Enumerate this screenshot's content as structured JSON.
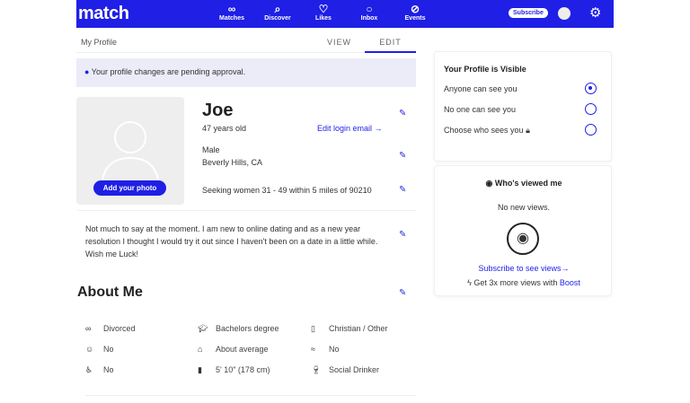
{
  "nav": {
    "logo": "match",
    "items": [
      {
        "label": "Matches",
        "icon": "rings-icon"
      },
      {
        "label": "Discover",
        "icon": "search-icon"
      },
      {
        "label": "Likes",
        "icon": "heart-icon"
      },
      {
        "label": "Inbox",
        "icon": "chat-icon"
      },
      {
        "label": "Events",
        "icon": "ticket-icon"
      }
    ],
    "subscribe": "Subscribe"
  },
  "header": {
    "title": "My Profile",
    "tabs": [
      "VIEW",
      "EDIT"
    ],
    "active_tab": "EDIT"
  },
  "banner": "Your profile changes are pending approval.",
  "profile": {
    "add_photo": "Add your photo",
    "name": "Joe",
    "age": "47 years old",
    "edit_login": "Edit login email →",
    "gender": "Male",
    "location": "Beverly Hills, CA",
    "seeking": "Seeking women 31 - 49 within 5 miles of 90210",
    "bio": "Not much to say at the moment. I am new to online dating and as a new year resolution I thought I would try it out since I haven't been on a date in a little while. Wish me Luck!"
  },
  "about": {
    "title": "About Me",
    "items": [
      [
        "Divorced",
        "Bachelors degree",
        "Christian / Other"
      ],
      [
        "No",
        "About average",
        "No"
      ],
      [
        "No",
        "5' 10\" (178 cm)",
        "Social Drinker"
      ]
    ]
  },
  "visibility": {
    "title": "Your Profile is Visible",
    "options": [
      "Anyone can see you",
      "No one can see you",
      "Choose who sees you"
    ],
    "selected": 0
  },
  "viewed": {
    "title": "Who's viewed me",
    "empty": "No new views.",
    "subscribe_link": "Subscribe to see views→",
    "boost_text": "Get 3x more views with",
    "boost_link": "Boost"
  },
  "colors": {
    "brand": "#1f1fe6"
  }
}
